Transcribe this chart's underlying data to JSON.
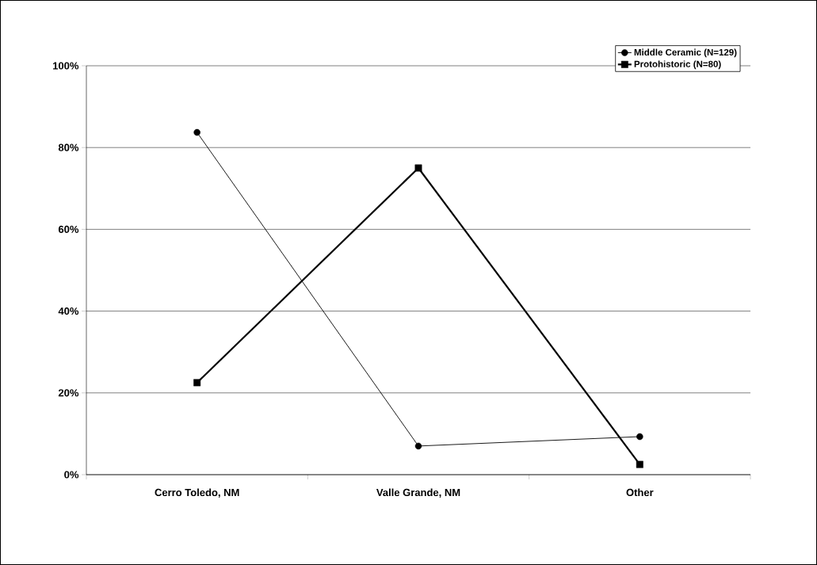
{
  "chart_data": {
    "type": "line",
    "categories": [
      "Cerro Toledo, NM",
      "Valle Grande, NM",
      "Other"
    ],
    "series": [
      {
        "name": "Middle Ceramic (N=129)",
        "color": "#000000",
        "marker": "circle",
        "values": [
          83.7,
          7.0,
          9.3
        ]
      },
      {
        "name": "Protohistoric (N=80)",
        "color": "#000000",
        "marker": "square",
        "values": [
          22.5,
          75,
          2.5
        ]
      }
    ],
    "ylim": [
      0,
      100
    ],
    "yticks": [
      {
        "value": 0,
        "label": "0%"
      },
      {
        "value": 20,
        "label": "20%"
      },
      {
        "value": 40,
        "label": "40%"
      },
      {
        "value": 60,
        "label": "60%"
      },
      {
        "value": 80,
        "label": "80%"
      },
      {
        "value": 100,
        "label": "100%"
      }
    ],
    "grid": "y",
    "legend": "top right",
    "line_style": "solid"
  }
}
